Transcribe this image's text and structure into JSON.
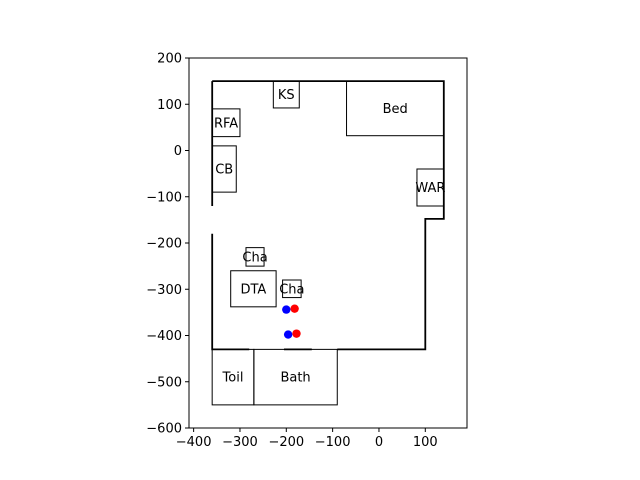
{
  "plot": {
    "xlim": [
      -410,
      190
    ],
    "ylim": [
      -600,
      200
    ],
    "x_ticks": [
      -400,
      -300,
      -200,
      -100,
      0,
      100
    ],
    "y_ticks": [
      200,
      100,
      0,
      -100,
      -200,
      -300,
      -400,
      -500,
      -600
    ],
    "x_tick_labels": [
      "−400",
      "−300",
      "−200",
      "−100",
      "0",
      "100"
    ],
    "y_tick_labels": [
      "200",
      "100",
      "0",
      "−100",
      "−200",
      "−300",
      "−400",
      "−500",
      "−600"
    ]
  },
  "walls": [
    [
      [
        -360,
        150
      ],
      [
        140,
        150
      ],
      [
        140,
        -148
      ],
      [
        100,
        -148
      ],
      [
        100,
        -430
      ],
      [
        -90,
        -430
      ]
    ],
    [
      [
        -145,
        -430
      ],
      [
        -205,
        -430
      ]
    ],
    [
      [
        -280,
        -430
      ],
      [
        -360,
        -430
      ],
      [
        -360,
        -180
      ]
    ],
    [
      [
        -360,
        -120
      ],
      [
        -360,
        150
      ]
    ]
  ],
  "rooms": [
    {
      "id": "rfa",
      "label": "RFA",
      "x0": -360,
      "y0": 90,
      "x1": -300,
      "y1": 30
    },
    {
      "id": "ks",
      "label": "KS",
      "x0": -228,
      "y0": 150,
      "x1": -172,
      "y1": 92
    },
    {
      "id": "bed",
      "label": "Bed",
      "x0": -70,
      "y0": 150,
      "x1": 140,
      "y1": 32
    },
    {
      "id": "cb",
      "label": "CB",
      "x0": -360,
      "y0": 10,
      "x1": -308,
      "y1": -90
    },
    {
      "id": "war",
      "label": "WAR",
      "x0": 82,
      "y0": -40,
      "x1": 140,
      "y1": -120
    },
    {
      "id": "cha1",
      "label": "Cha",
      "x0": -287,
      "y0": -210,
      "x1": -248,
      "y1": -250
    },
    {
      "id": "dta",
      "label": "DTA",
      "x0": -320,
      "y0": -260,
      "x1": -222,
      "y1": -338
    },
    {
      "id": "cha2",
      "label": "Cha",
      "x0": -208,
      "y0": -280,
      "x1": -168,
      "y1": -318
    },
    {
      "id": "toil",
      "label": "Toil",
      "x0": -360,
      "y0": -430,
      "x1": -270,
      "y1": -550
    },
    {
      "id": "bath",
      "label": "Bath",
      "x0": -270,
      "y0": -430,
      "x1": -90,
      "y1": -550
    }
  ],
  "points": [
    {
      "x": -200,
      "y": -344,
      "color": "#0000ff"
    },
    {
      "x": -182,
      "y": -342,
      "color": "#ff0000"
    },
    {
      "x": -196,
      "y": -398,
      "color": "#0000ff"
    },
    {
      "x": -178,
      "y": -396,
      "color": "#ff0000"
    }
  ]
}
